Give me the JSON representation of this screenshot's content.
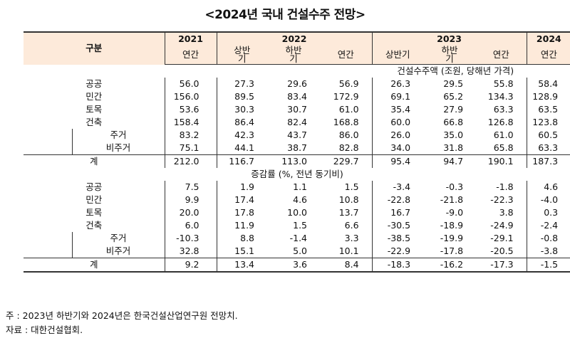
{
  "title": "<2024년 국내 건설수주 전망>",
  "header": {
    "category": "구분",
    "years": [
      "2021",
      "2022",
      "2023",
      "2024"
    ],
    "sub": [
      "연간",
      "상반\n기",
      "하반\n기",
      "연간",
      "상반기",
      "하반\n기",
      "연간",
      "연간"
    ]
  },
  "section1_title": "건설수주액 (조원, 당해년 가격)",
  "section2_title": "증감률 (%, 전년 동기비)",
  "labels": [
    "공공",
    "민간",
    "토목",
    "건축",
    "주거",
    "비주거",
    "계"
  ],
  "section1": [
    [
      "56.0",
      "27.3",
      "29.6",
      "56.9",
      "26.3",
      "29.5",
      "55.8",
      "58.4"
    ],
    [
      "156.0",
      "89.5",
      "83.4",
      "172.9",
      "69.1",
      "65.2",
      "134.3",
      "128.9"
    ],
    [
      "53.6",
      "30.3",
      "30.7",
      "61.0",
      "35.4",
      "27.9",
      "63.3",
      "63.5"
    ],
    [
      "158.4",
      "86.4",
      "82.4",
      "168.8",
      "60.0",
      "66.8",
      "126.8",
      "123.8"
    ],
    [
      "83.2",
      "42.3",
      "43.7",
      "86.0",
      "26.0",
      "35.0",
      "61.0",
      "60.5"
    ],
    [
      "75.1",
      "44.1",
      "38.7",
      "82.8",
      "34.0",
      "31.8",
      "65.8",
      "63.3"
    ],
    [
      "212.0",
      "116.7",
      "113.0",
      "229.7",
      "95.4",
      "94.7",
      "190.1",
      "187.3"
    ]
  ],
  "section2": [
    [
      "7.5",
      "1.9",
      "1.1",
      "1.5",
      "-3.4",
      "-0.3",
      "-1.8",
      "4.6"
    ],
    [
      "9.9",
      "17.4",
      "4.6",
      "10.8",
      "-22.8",
      "-21.8",
      "-22.3",
      "-4.0"
    ],
    [
      "20.0",
      "17.8",
      "10.0",
      "13.7",
      "16.7",
      "-9.0",
      "3.8",
      "0.3"
    ],
    [
      "6.0",
      "11.9",
      "1.5",
      "6.6",
      "-30.5",
      "-18.9",
      "-24.9",
      "-2.4"
    ],
    [
      "-10.3",
      "8.8",
      "-1.4",
      "3.3",
      "-38.5",
      "-19.9",
      "-29.1",
      "-0.8"
    ],
    [
      "32.8",
      "15.1",
      "5.0",
      "10.1",
      "-22.9",
      "-17.8",
      "-20.5",
      "-3.8"
    ],
    [
      "9.2",
      "13.4",
      "3.6",
      "8.4",
      "-18.3",
      "-16.2",
      "-17.3",
      "-1.5"
    ]
  ],
  "notes": [
    "주 : 2023년 하반기와 2024년은 한국건설산업연구원 전망치.",
    "자료 : 대한건설협회."
  ]
}
